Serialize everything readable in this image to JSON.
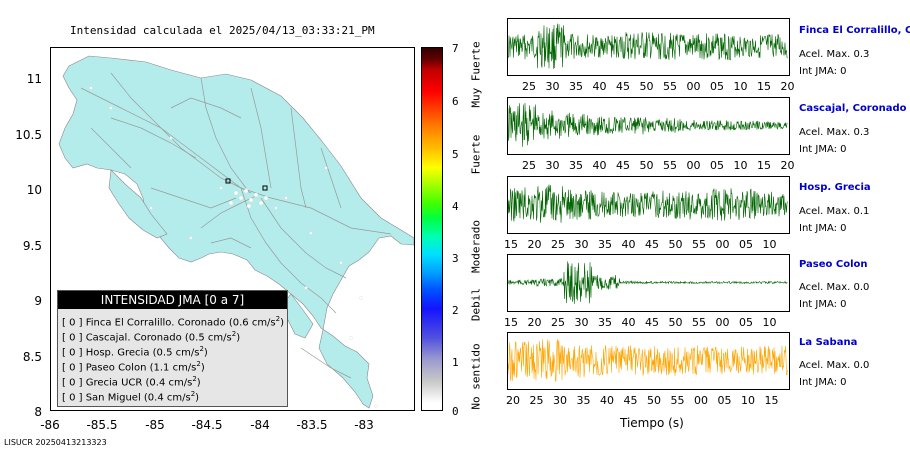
{
  "map": {
    "title": "Intensidad calculada el 2025/04/13_03:33:21_PM",
    "y_ticks": [
      "11",
      "10.5",
      "10",
      "9.5",
      "9",
      "8.5",
      "8"
    ],
    "x_ticks": [
      "-86",
      "-85.5",
      "-85",
      "-84.5",
      "-84",
      "-83.5",
      "-83"
    ]
  },
  "legend": {
    "title": "INTENSIDAD JMA [0 a 7]",
    "items": [
      {
        "text": "[ 0 ]  Finca El Corralillo. Coronado (0.6 cm/s",
        "sup": "2",
        "close": ")"
      },
      {
        "text": "[ 0 ]  Cascajal. Coronado (0.5 cm/s",
        "sup": "2",
        "close": ")"
      },
      {
        "text": "[ 0 ]  Hosp. Grecia (0.5 cm/s",
        "sup": "2",
        "close": ")"
      },
      {
        "text": "[ 0 ]  Paseo Colon (1.1 cm/s",
        "sup": "2",
        "close": ")"
      },
      {
        "text": "[ 0 ]  Grecia UCR (0.4 cm/s",
        "sup": "2",
        "close": ")"
      },
      {
        "text": "[ 0 ]  San Miguel (0.4 cm/s",
        "sup": "2",
        "close": ")"
      }
    ]
  },
  "colorbar": {
    "ticks": [
      "7",
      "6",
      "5",
      "4",
      "3",
      "2",
      "1",
      "0"
    ],
    "labels": [
      "Muy Fuerte",
      "Fuerte",
      "Moderado",
      "Debil",
      "No sentido"
    ]
  },
  "traces": [
    {
      "name": "Finca El Corralillo, Coro",
      "acel": "Acel. Max. 0.3",
      "int": "Int JMA: 0",
      "color": "#006400",
      "ticks": [
        "25",
        "30",
        "35",
        "40",
        "45",
        "50",
        "55",
        "00",
        "05",
        "10",
        "15",
        "20"
      ]
    },
    {
      "name": "Cascajal, Coronado",
      "acel": "Acel. Max. 0.3",
      "int": "Int JMA: 0",
      "color": "#006400",
      "ticks": [
        "25",
        "30",
        "35",
        "40",
        "45",
        "50",
        "55",
        "00",
        "05",
        "10",
        "15",
        "20"
      ]
    },
    {
      "name": "Hosp. Grecia",
      "acel": "Acel. Max. 0.1",
      "int": "Int JMA: 0",
      "color": "#006400",
      "ticks": [
        "15",
        "20",
        "25",
        "30",
        "35",
        "40",
        "45",
        "50",
        "55",
        "00",
        "05",
        "10"
      ]
    },
    {
      "name": "Paseo Colon",
      "acel": "Acel. Max. 0.0",
      "int": "Int JMA: 0",
      "color": "#006400",
      "ticks": [
        "15",
        "20",
        "25",
        "30",
        "35",
        "40",
        "45",
        "50",
        "55",
        "00",
        "05",
        "10"
      ]
    },
    {
      "name": "La Sabana",
      "acel": "Acel. Max. 0.0",
      "int": "Int JMA: 0",
      "color": "#ffa500",
      "ticks": [
        "20",
        "25",
        "30",
        "35",
        "40",
        "45",
        "50",
        "55",
        "00",
        "05",
        "10",
        "15"
      ]
    }
  ],
  "xaxis_label": "Tiempo (s)",
  "footer_id": "LISUCR 20250413213323"
}
